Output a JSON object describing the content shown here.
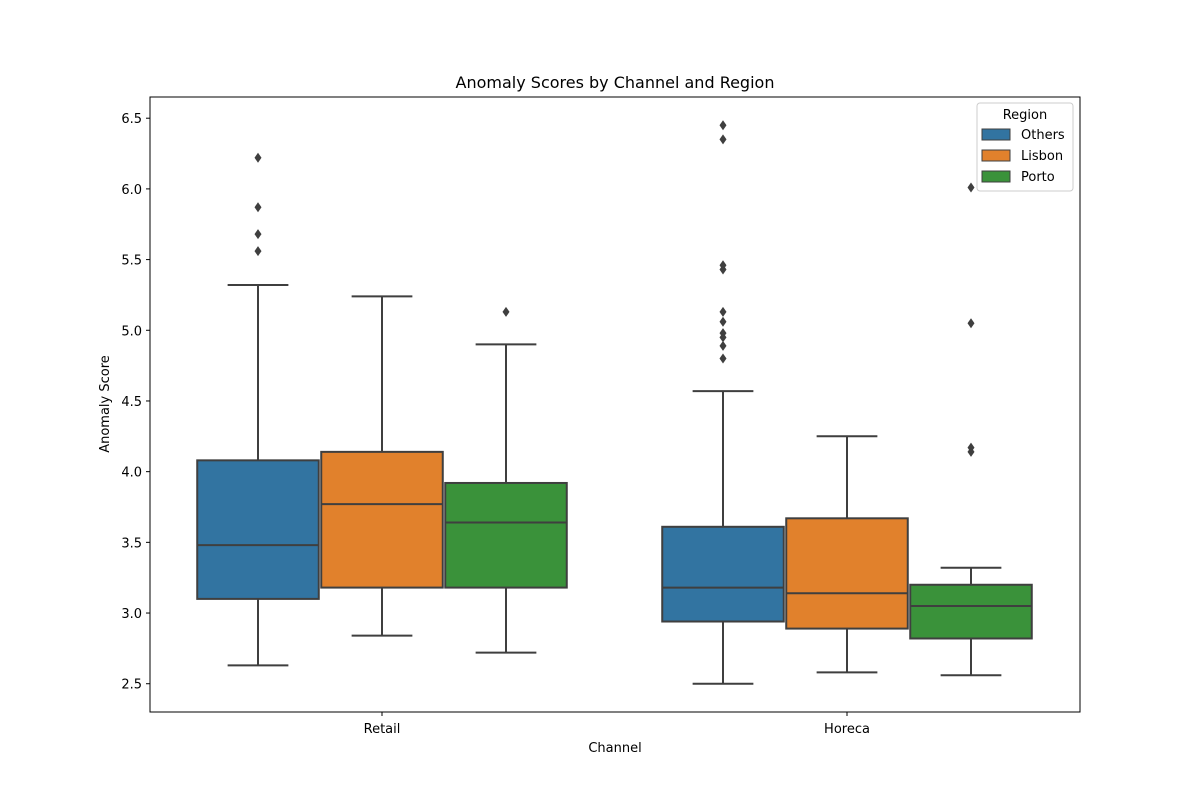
{
  "chart_data": {
    "type": "box",
    "title": "Anomaly Scores by Channel and Region",
    "xlabel": "Channel",
    "ylabel": "Anomaly Score",
    "categories": [
      "Retail",
      "Horeca"
    ],
    "ylim": [
      2.3,
      6.65
    ],
    "yticks": [
      "2.5",
      "3.0",
      "3.5",
      "4.0",
      "4.5",
      "5.0",
      "5.5",
      "6.0",
      "6.5"
    ],
    "grid": false,
    "legend": {
      "title": "Region",
      "position": "top-right"
    },
    "colors": {
      "Others": "#3274a1",
      "Lisbon": "#e1812c",
      "Porto": "#3a923a",
      "edge": "#3f3f3f"
    },
    "series": [
      {
        "name": "Others",
        "boxes": [
          {
            "category": "Retail",
            "whislo": 2.63,
            "q1": 3.1,
            "median": 3.48,
            "q3": 4.08,
            "whishi": 5.32,
            "fliers": [
              5.56,
              5.68,
              5.87,
              6.22
            ]
          },
          {
            "category": "Horeca",
            "whislo": 2.5,
            "q1": 2.94,
            "median": 3.18,
            "q3": 3.61,
            "whishi": 4.57,
            "fliers": [
              4.8,
              4.89,
              4.95,
              4.98,
              5.06,
              5.13,
              5.43,
              5.46,
              6.35,
              6.45
            ]
          }
        ]
      },
      {
        "name": "Lisbon",
        "boxes": [
          {
            "category": "Retail",
            "whislo": 2.84,
            "q1": 3.18,
            "median": 3.77,
            "q3": 4.14,
            "whishi": 5.24,
            "fliers": []
          },
          {
            "category": "Horeca",
            "whislo": 2.58,
            "q1": 2.89,
            "median": 3.14,
            "q3": 3.67,
            "whishi": 4.25,
            "fliers": []
          }
        ]
      },
      {
        "name": "Porto",
        "boxes": [
          {
            "category": "Retail",
            "whislo": 2.72,
            "q1": 3.18,
            "median": 3.64,
            "q3": 3.92,
            "whishi": 4.9,
            "fliers": [
              5.13
            ]
          },
          {
            "category": "Horeca",
            "whislo": 2.56,
            "q1": 2.82,
            "median": 3.05,
            "q3": 3.2,
            "whishi": 3.32,
            "fliers": [
              4.14,
              4.17,
              5.05,
              6.01
            ]
          }
        ]
      }
    ]
  }
}
